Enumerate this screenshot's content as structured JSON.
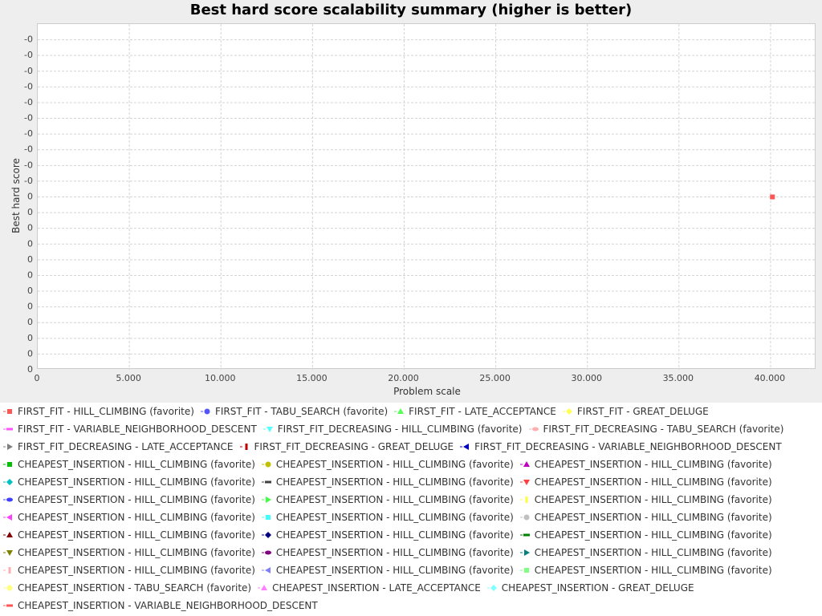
{
  "chart_data": {
    "type": "scatter",
    "title": "Best hard score scalability summary (higher is better)",
    "xlabel": "Problem scale",
    "ylabel": "Best hard score",
    "xlim": [
      0,
      42500
    ],
    "x_ticks": [
      {
        "value": 0,
        "label": "0"
      },
      {
        "value": 5000,
        "label": "5.000"
      },
      {
        "value": 10000,
        "label": "10.000"
      },
      {
        "value": 15000,
        "label": "15.000"
      },
      {
        "value": 20000,
        "label": "20.000"
      },
      {
        "value": 25000,
        "label": "25.000"
      },
      {
        "value": 30000,
        "label": "30.000"
      },
      {
        "value": 35000,
        "label": "35.000"
      },
      {
        "value": 40000,
        "label": "40.000"
      }
    ],
    "y_tick_labels": [
      "0",
      "0",
      "0",
      "0",
      "0",
      "0",
      "0",
      "0",
      "0",
      "0",
      "0",
      "0",
      "-0",
      "-0",
      "-0",
      "-0",
      "-0",
      "-0",
      "-0",
      "-0",
      "-0",
      "-0"
    ],
    "grid": true,
    "legend_position": "bottom",
    "points": [
      {
        "series": "FIRST_FIT - HILL_CLIMBING (favorite)",
        "x": 40100,
        "y": 0,
        "color": "#ff5555"
      }
    ],
    "legend": [
      [
        {
          "label": "FIRST_FIT - HILL_CLIMBING (favorite)",
          "color": "#ff5555",
          "shape": "square"
        },
        {
          "label": "FIRST_FIT - TABU_SEARCH (favorite)",
          "color": "#5555ff",
          "shape": "circle"
        },
        {
          "label": "FIRST_FIT - LATE_ACCEPTANCE",
          "color": "#55ff55",
          "shape": "triangle-up"
        },
        {
          "label": "FIRST_FIT - GREAT_DELUGE",
          "color": "#ffff55",
          "shape": "diamond"
        }
      ],
      [
        {
          "label": "FIRST_FIT - VARIABLE_NEIGHBORHOOD_DESCENT",
          "color": "#ff55ff",
          "shape": "hbar"
        },
        {
          "label": "FIRST_FIT_DECREASING - HILL_CLIMBING (favorite)",
          "color": "#55ffff",
          "shape": "triangle-down"
        },
        {
          "label": "FIRST_FIT_DECREASING - TABU_SEARCH (favorite)",
          "color": "#ffafaf",
          "shape": "ellipse"
        }
      ],
      [
        {
          "label": "FIRST_FIT_DECREASING - LATE_ACCEPTANCE",
          "color": "#808080",
          "shape": "triangle-right"
        },
        {
          "label": "FIRST_FIT_DECREASING - GREAT_DELUGE",
          "color": "#c00000",
          "shape": "vbar"
        },
        {
          "label": "FIRST_FIT_DECREASING - VARIABLE_NEIGHBORHOOD_DESCENT",
          "color": "#0000c0",
          "shape": "triangle-left"
        }
      ],
      [
        {
          "label": "CHEAPEST_INSERTION - HILL_CLIMBING (favorite)",
          "color": "#00c000",
          "shape": "square"
        },
        {
          "label": "CHEAPEST_INSERTION - HILL_CLIMBING (favorite)",
          "color": "#c0c000",
          "shape": "circle"
        },
        {
          "label": "CHEAPEST_INSERTION - HILL_CLIMBING (favorite)",
          "color": "#c000c0",
          "shape": "triangle-up"
        }
      ],
      [
        {
          "label": "CHEAPEST_INSERTION - HILL_CLIMBING (favorite)",
          "color": "#00c0c0",
          "shape": "diamond"
        },
        {
          "label": "CHEAPEST_INSERTION - HILL_CLIMBING (favorite)",
          "color": "#404040",
          "shape": "hbar"
        },
        {
          "label": "CHEAPEST_INSERTION - HILL_CLIMBING (favorite)",
          "color": "#ff4040",
          "shape": "triangle-down"
        }
      ],
      [
        {
          "label": "CHEAPEST_INSERTION - HILL_CLIMBING (favorite)",
          "color": "#4040ff",
          "shape": "ellipse"
        },
        {
          "label": "CHEAPEST_INSERTION - HILL_CLIMBING (favorite)",
          "color": "#40ff40",
          "shape": "triangle-right"
        },
        {
          "label": "CHEAPEST_INSERTION - HILL_CLIMBING (favorite)",
          "color": "#ffff40",
          "shape": "vbar"
        }
      ],
      [
        {
          "label": "CHEAPEST_INSERTION - HILL_CLIMBING (favorite)",
          "color": "#ff40ff",
          "shape": "triangle-left"
        },
        {
          "label": "CHEAPEST_INSERTION - HILL_CLIMBING (favorite)",
          "color": "#40ffff",
          "shape": "square"
        },
        {
          "label": "CHEAPEST_INSERTION - HILL_CLIMBING (favorite)",
          "color": "#c0c0c0",
          "shape": "circle"
        }
      ],
      [
        {
          "label": "CHEAPEST_INSERTION - HILL_CLIMBING (favorite)",
          "color": "#800000",
          "shape": "triangle-up"
        },
        {
          "label": "CHEAPEST_INSERTION - HILL_CLIMBING (favorite)",
          "color": "#000080",
          "shape": "diamond"
        },
        {
          "label": "CHEAPEST_INSERTION - HILL_CLIMBING (favorite)",
          "color": "#008000",
          "shape": "hbar"
        }
      ],
      [
        {
          "label": "CHEAPEST_INSERTION - HILL_CLIMBING (favorite)",
          "color": "#808000",
          "shape": "triangle-down"
        },
        {
          "label": "CHEAPEST_INSERTION - HILL_CLIMBING (favorite)",
          "color": "#800080",
          "shape": "ellipse"
        },
        {
          "label": "CHEAPEST_INSERTION - HILL_CLIMBING (favorite)",
          "color": "#008080",
          "shape": "triangle-right"
        }
      ],
      [
        {
          "label": "CHEAPEST_INSERTION - HILL_CLIMBING (favorite)",
          "color": "#ffafaf",
          "shape": "vbar"
        },
        {
          "label": "CHEAPEST_INSERTION - HILL_CLIMBING (favorite)",
          "color": "#8080ff",
          "shape": "triangle-left"
        },
        {
          "label": "CHEAPEST_INSERTION - HILL_CLIMBING (favorite)",
          "color": "#80ff80",
          "shape": "square"
        }
      ],
      [
        {
          "label": "CHEAPEST_INSERTION - TABU_SEARCH (favorite)",
          "color": "#ffff80",
          "shape": "circle"
        },
        {
          "label": "CHEAPEST_INSERTION - LATE_ACCEPTANCE",
          "color": "#ff80ff",
          "shape": "triangle-up"
        },
        {
          "label": "CHEAPEST_INSERTION - GREAT_DELUGE",
          "color": "#80ffff",
          "shape": "diamond"
        }
      ],
      [
        {
          "label": "CHEAPEST_INSERTION - VARIABLE_NEIGHBORHOOD_DESCENT",
          "color": "#ff5555",
          "shape": "hbar"
        }
      ]
    ]
  }
}
